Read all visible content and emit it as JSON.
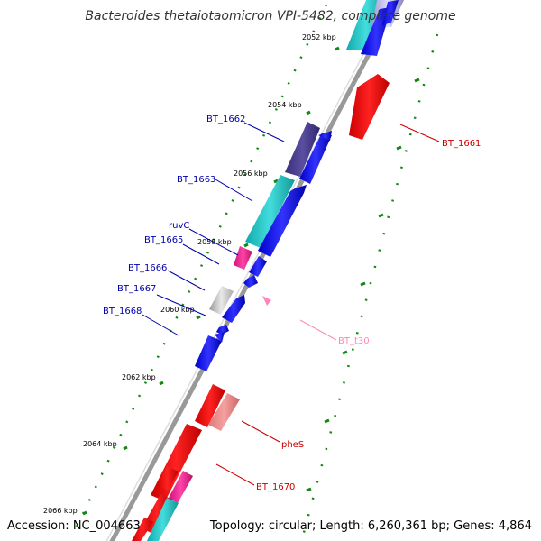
{
  "title": "Bacteroides thetaiotaomicron VPI-5482, complete genome",
  "footer": {
    "accession": "Accession: NC_004663",
    "summary": "Topology: circular; Length: 6,260,361 bp; Genes: 4,864"
  },
  "scale": {
    "ticks": [
      "2052 kbp",
      "2054 kbp",
      "2056 kbp",
      "2058 kbp",
      "2060 kbp",
      "2062 kbp",
      "2064 kbp",
      "2066 kbp"
    ]
  },
  "gene_labels": [
    {
      "id": "BT_1661",
      "text": "BT_1661",
      "color": "#cc0000"
    },
    {
      "id": "BT_1662",
      "text": "BT_1662",
      "color": "#0000aa"
    },
    {
      "id": "BT_1663",
      "text": "BT_1663",
      "color": "#0000aa"
    },
    {
      "id": "ruvC",
      "text": "ruvC",
      "color": "#0000aa"
    },
    {
      "id": "BT_1665",
      "text": "BT_1665",
      "color": "#0000aa"
    },
    {
      "id": "BT_1666",
      "text": "BT_1666",
      "color": "#0000aa"
    },
    {
      "id": "BT_1667",
      "text": "BT_1667",
      "color": "#0000aa"
    },
    {
      "id": "BT_1668",
      "text": "BT_1668",
      "color": "#0000aa"
    },
    {
      "id": "BT_t30",
      "text": "BT_t30",
      "color": "#ff88bb"
    },
    {
      "id": "pheS",
      "text": "pheS",
      "color": "#cc0000"
    },
    {
      "id": "BT_1670",
      "text": "BT_1670",
      "color": "#cc0000"
    }
  ],
  "colors": {
    "backbone": "#999999",
    "forward_gene": "#0000ee",
    "reverse_gene": "#ee0000",
    "cyan_feature": "#22cccc",
    "purple_feature": "#4a3d8f",
    "magenta_feature": "#ee2299",
    "gray_feature": "#bbbbbb",
    "pink_feature": "#ee8888",
    "trna": "#ff88bb",
    "green_ticks": "#118811"
  }
}
